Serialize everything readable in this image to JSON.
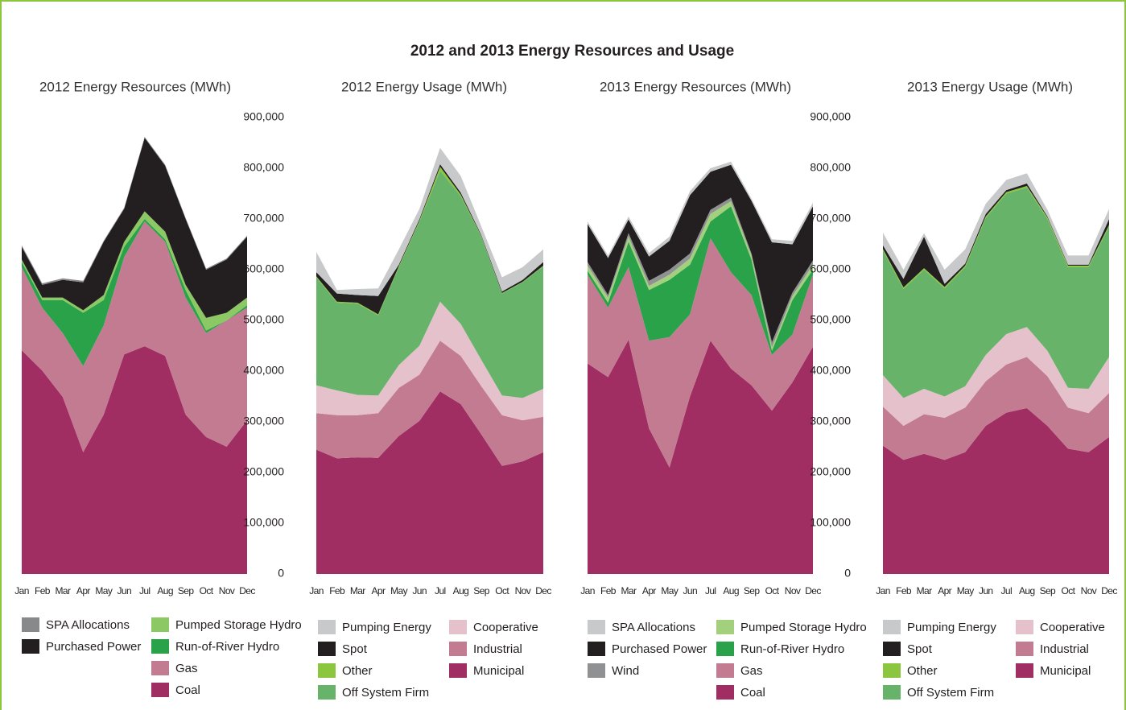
{
  "title": "2012 and 2013 Energy Resources and Usage",
  "chart_data": [
    {
      "type": "stacked_area",
      "title": "2012 Energy Resources (MWh)",
      "categories": [
        "Jan",
        "Feb",
        "Mar",
        "Apr",
        "May",
        "Jun",
        "Jul",
        "Aug",
        "Sep",
        "Oct",
        "Nov",
        "Dec"
      ],
      "ylim": [
        0,
        900000
      ],
      "series": [
        {
          "name": "Coal",
          "color": "#a12e62",
          "values": [
            441000,
            401000,
            349000,
            240000,
            314000,
            433000,
            449000,
            430000,
            314000,
            270000,
            251000,
            303000
          ]
        },
        {
          "name": "Gas",
          "color": "#c37b92",
          "values": [
            164000,
            124000,
            126000,
            170000,
            176000,
            192000,
            246000,
            225000,
            231000,
            205000,
            249000,
            222000
          ]
        },
        {
          "name": "Run-of-River Hydro",
          "color": "#2aa24a",
          "values": [
            10000,
            15000,
            65000,
            105000,
            50000,
            20000,
            5000,
            5000,
            15000,
            5000,
            0,
            5000
          ]
        },
        {
          "name": "Pumped Storage Hydro",
          "color": "#8cc863",
          "values": [
            5000,
            5000,
            5000,
            5000,
            10000,
            10000,
            15000,
            15000,
            10000,
            25000,
            15000,
            15000
          ]
        },
        {
          "name": "Purchased Power",
          "color": "#231f20",
          "values": [
            25000,
            25000,
            35000,
            55000,
            105000,
            65000,
            145000,
            130000,
            130000,
            95000,
            105000,
            120000
          ]
        },
        {
          "name": "SPA Allocations",
          "color": "#88898b",
          "values": [
            3000,
            3000,
            3000,
            3000,
            2000,
            2000,
            2000,
            2000,
            2000,
            2000,
            2000,
            2000
          ]
        }
      ]
    },
    {
      "type": "stacked_area",
      "title": "2012 Energy Usage (MWh)",
      "categories": [
        "Jan",
        "Feb",
        "Mar",
        "Apr",
        "May",
        "Jun",
        "Jul",
        "Aug",
        "Sep",
        "Oct",
        "Nov",
        "Dec"
      ],
      "ylim": [
        0,
        900000
      ],
      "yticks": [
        0,
        {
          "value": 100000,
          "label": "100,000"
        },
        {
          "value": 200000,
          "label": "200,000"
        },
        {
          "value": 300000,
          "label": "300,000"
        },
        {
          "value": 400000,
          "label": "400,000"
        },
        {
          "value": 500000,
          "label": "500,000"
        },
        {
          "value": 600000,
          "label": "600,000"
        },
        {
          "value": 700000,
          "label": "700,000"
        },
        {
          "value": 800000,
          "label": "800,000"
        },
        {
          "value": 900000,
          "label": "900,000"
        }
      ],
      "series": [
        {
          "name": "Municipal",
          "color": "#a12e62",
          "values": [
            245000,
            228000,
            230000,
            229000,
            272000,
            302000,
            360000,
            335000,
            275000,
            213000,
            222000,
            240000
          ]
        },
        {
          "name": "Industrial",
          "color": "#c37b92",
          "values": [
            72000,
            85000,
            83000,
            88000,
            95000,
            91000,
            100000,
            95000,
            95000,
            100000,
            81000,
            70000
          ]
        },
        {
          "name": "Cooperative",
          "color": "#e4c1cb",
          "values": [
            55000,
            49000,
            40000,
            35000,
            45000,
            57000,
            77000,
            63000,
            52000,
            39000,
            44000,
            55000
          ]
        },
        {
          "name": "Off System Firm",
          "color": "#67b36a",
          "values": [
            213000,
            173000,
            180000,
            158000,
            193000,
            245000,
            258000,
            252000,
            243000,
            201000,
            228000,
            242000
          ]
        },
        {
          "name": "Other",
          "color": "#8cc63f",
          "values": [
            2000,
            2000,
            2000,
            2000,
            2000,
            2000,
            8000,
            3000,
            1000,
            1000,
            1000,
            1000
          ]
        },
        {
          "name": "Spot",
          "color": "#231f20",
          "values": [
            8000,
            16000,
            15000,
            36000,
            3000,
            3000,
            5000,
            4000,
            2000,
            3000,
            4000,
            7000
          ]
        },
        {
          "name": "Pumping Energy",
          "color": "#c8c9ca",
          "values": [
            40000,
            7000,
            12000,
            15000,
            30000,
            20000,
            32000,
            33000,
            17000,
            28000,
            25000,
            25000
          ]
        }
      ]
    },
    {
      "type": "stacked_area",
      "title": "2013 Energy Resources (MWh)",
      "categories": [
        "Jan",
        "Feb",
        "Mar",
        "Apr",
        "May",
        "Jun",
        "Jul",
        "Aug",
        "Sep",
        "Oct",
        "Nov",
        "Dec"
      ],
      "ylim": [
        0,
        900000
      ],
      "series": [
        {
          "name": "Coal",
          "color": "#a12e62",
          "values": [
            415000,
            388000,
            462000,
            287000,
            210000,
            350000,
            460000,
            405000,
            372000,
            322000,
            378000,
            448000
          ]
        },
        {
          "name": "Gas",
          "color": "#c37b92",
          "values": [
            175000,
            137000,
            143000,
            173000,
            257000,
            162000,
            202000,
            190000,
            178000,
            110000,
            94000,
            142000
          ]
        },
        {
          "name": "Run-of-River Hydro",
          "color": "#2aa24a",
          "values": [
            8000,
            10000,
            50000,
            100000,
            113000,
            98000,
            33000,
            130000,
            70000,
            8000,
            68000,
            10000
          ]
        },
        {
          "name": "Pumped Storage Hydro",
          "color": "#a3d07d",
          "values": [
            10000,
            10000,
            10000,
            8000,
            10000,
            12000,
            15000,
            10000,
            8000,
            7000,
            8000,
            10000
          ]
        },
        {
          "name": "Wind",
          "color": "#8f9193",
          "values": [
            7000,
            5000,
            7000,
            10000,
            10000,
            10000,
            8000,
            7000,
            4000,
            10000,
            7000,
            8000
          ]
        },
        {
          "name": "Purchased Power",
          "color": "#231f20",
          "values": [
            75000,
            73000,
            27000,
            48000,
            57000,
            115000,
            75000,
            65000,
            104000,
            197000,
            95000,
            107000
          ]
        },
        {
          "name": "SPA Allocations",
          "color": "#c8c9ca",
          "values": [
            5000,
            5000,
            6000,
            7000,
            8000,
            8000,
            7000,
            6000,
            4000,
            6000,
            7000,
            7000
          ]
        }
      ]
    },
    {
      "type": "stacked_area",
      "title": "2013 Energy Usage (MWh)",
      "categories": [
        "Jan",
        "Feb",
        "Mar",
        "Apr",
        "May",
        "Jun",
        "Jul",
        "Aug",
        "Sep",
        "Oct",
        "Nov",
        "Dec"
      ],
      "ylim": [
        0,
        900000
      ],
      "yticks": [
        0,
        {
          "value": 100000,
          "label": "100,000"
        },
        {
          "value": 200000,
          "label": "200,000"
        },
        {
          "value": 300000,
          "label": "300,000"
        },
        {
          "value": 400000,
          "label": "400,000"
        },
        {
          "value": 500000,
          "label": "500,000"
        },
        {
          "value": 600000,
          "label": "600,000"
        },
        {
          "value": 700000,
          "label": "700,000"
        },
        {
          "value": 800000,
          "label": "800,000"
        },
        {
          "value": 900000,
          "label": "900,000"
        }
      ],
      "series": [
        {
          "name": "Municipal",
          "color": "#a12e62",
          "values": [
            253000,
            225000,
            237000,
            225000,
            240000,
            292000,
            318000,
            327000,
            292000,
            247000,
            240000,
            270000
          ]
        },
        {
          "name": "Industrial",
          "color": "#c37b92",
          "values": [
            77000,
            67000,
            78000,
            83000,
            88000,
            88000,
            95000,
            101000,
            98000,
            81000,
            77000,
            87000
          ]
        },
        {
          "name": "Cooperative",
          "color": "#e4c1cb",
          "values": [
            62000,
            55000,
            50000,
            42000,
            42000,
            52000,
            60000,
            59000,
            50000,
            39000,
            48000,
            71000
          ]
        },
        {
          "name": "Off System Firm",
          "color": "#67b36a",
          "values": [
            246000,
            215000,
            235000,
            213000,
            235000,
            270000,
            277000,
            275000,
            260000,
            238000,
            240000,
            257000
          ]
        },
        {
          "name": "Other",
          "color": "#8cc63f",
          "values": [
            3000,
            3000,
            3000,
            3000,
            3000,
            3000,
            3000,
            3000,
            3000,
            3000,
            3000,
            3000
          ]
        },
        {
          "name": "Spot",
          "color": "#231f20",
          "values": [
            7000,
            17000,
            62000,
            6000,
            4000,
            5000,
            4000,
            5000,
            2000,
            2000,
            2000,
            12000
          ]
        },
        {
          "name": "Pumping Energy",
          "color": "#c8c9ca",
          "values": [
            25000,
            18000,
            7000,
            28000,
            28000,
            20000,
            20000,
            20000,
            13000,
            18000,
            18000,
            20000
          ]
        }
      ]
    }
  ]
}
